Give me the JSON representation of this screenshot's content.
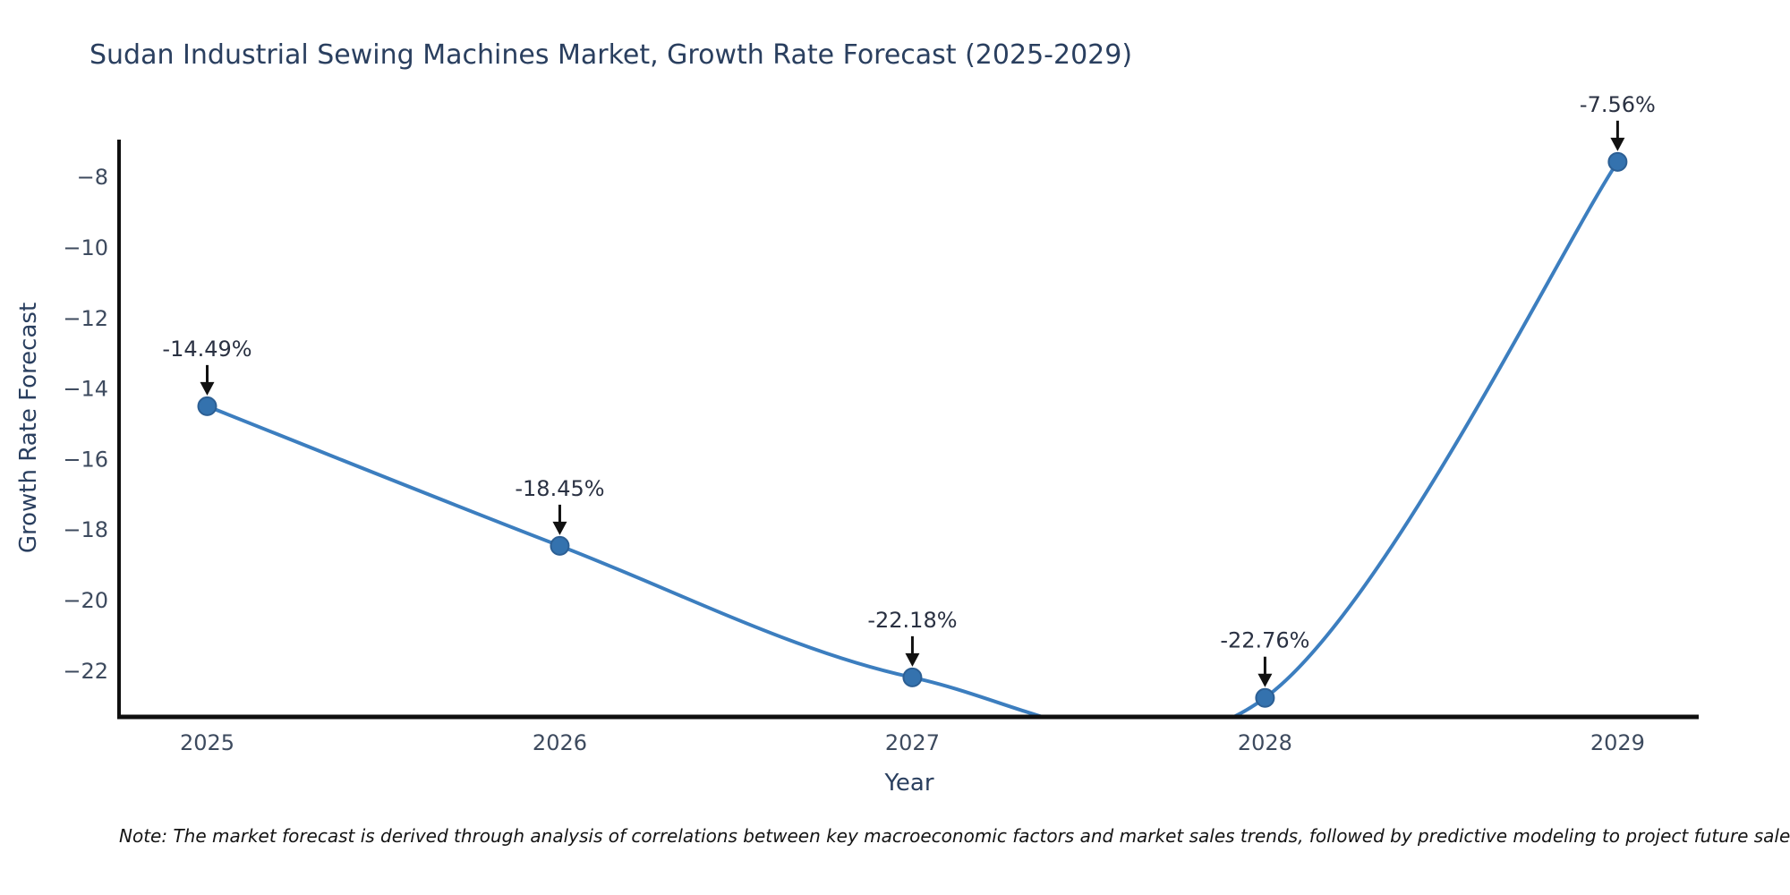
{
  "chart_data": {
    "type": "line",
    "title": "Sudan Industrial Sewing Machines Market, Growth Rate Forecast (2025-2029)",
    "xlabel": "Year",
    "ylabel": "Growth Rate Forecast",
    "x": [
      2025,
      2026,
      2027,
      2028,
      2029
    ],
    "y": [
      -14.49,
      -18.45,
      -22.18,
      -22.76,
      -7.56
    ],
    "point_labels": [
      "-14.49%",
      "-18.45%",
      "-22.18%",
      "-22.76%",
      "-7.56%"
    ],
    "x_ticks": [
      {
        "value": 2025,
        "label": "2025"
      },
      {
        "value": 2026,
        "label": "2026"
      },
      {
        "value": 2027,
        "label": "2027"
      },
      {
        "value": 2028,
        "label": "2028"
      },
      {
        "value": 2029,
        "label": "2029"
      }
    ],
    "y_ticks": [
      {
        "value": -8,
        "label": "−8"
      },
      {
        "value": -10,
        "label": "−10"
      },
      {
        "value": -12,
        "label": "−12"
      },
      {
        "value": -14,
        "label": "−14"
      },
      {
        "value": -16,
        "label": "−16"
      },
      {
        "value": -18,
        "label": "−18"
      },
      {
        "value": -20,
        "label": "−20"
      },
      {
        "value": -22,
        "label": "−22"
      }
    ],
    "x_range": [
      2024.75,
      2029.23
    ],
    "y_range": [
      -23.3,
      -6.93
    ],
    "line_shape": "spline",
    "grid": false,
    "legend": "none",
    "colors": {
      "line": "#3c7ebf",
      "marker_fill": "#3472ae",
      "marker_edge": "#2c5f94",
      "axis_line": "#0f0f0f",
      "arrow": "#111111",
      "title_text": "#2a3f5f",
      "tick_text": "#3d4a5e",
      "annotation_text": "#2a3142",
      "note_text": "#141414",
      "background": "#ffffff"
    }
  },
  "note": {
    "text": "Note: The market forecast is derived through analysis of correlations between key macroeconomic factors and market sales trends, followed by predictive modeling to project future sales."
  }
}
